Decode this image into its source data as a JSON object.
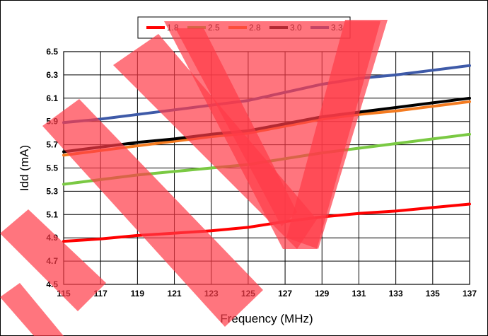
{
  "chart_data": {
    "type": "line",
    "title": "",
    "xlabel": "Frequency (MHz)",
    "ylabel": "Idd (mA)",
    "x": [
      115,
      117,
      119,
      121,
      123,
      125,
      127,
      129,
      131,
      133,
      135,
      137
    ],
    "xlim": [
      115,
      137
    ],
    "ylim": [
      4.5,
      6.5
    ],
    "xticks": [
      "115",
      "117",
      "119",
      "121",
      "123",
      "125",
      "127",
      "129",
      "131",
      "133",
      "135",
      "137"
    ],
    "yticks": [
      "4.5",
      "4.7",
      "4.9",
      "5.1",
      "5.3",
      "5.5",
      "5.7",
      "5.9",
      "6.1",
      "6.3",
      "6.5"
    ],
    "grid": true,
    "legend_position": "top-center",
    "series": [
      {
        "name": "1.8",
        "color": "#ff0000",
        "values": [
          4.87,
          4.89,
          4.92,
          4.94,
          4.96,
          4.99,
          5.04,
          5.08,
          5.11,
          5.13,
          5.16,
          5.19
        ]
      },
      {
        "name": "2.5",
        "color": "#7ac943",
        "values": [
          5.36,
          5.4,
          5.44,
          5.47,
          5.5,
          5.53,
          5.58,
          5.63,
          5.67,
          5.71,
          5.75,
          5.79
        ]
      },
      {
        "name": "2.8",
        "color": "#f47b20",
        "values": [
          5.61,
          5.65,
          5.69,
          5.73,
          5.77,
          5.8,
          5.86,
          5.92,
          5.96,
          5.99,
          6.03,
          6.07
        ]
      },
      {
        "name": "3.0",
        "color": "#000000",
        "values": [
          5.64,
          5.68,
          5.72,
          5.75,
          5.79,
          5.82,
          5.88,
          5.94,
          5.98,
          6.02,
          6.06,
          6.1
        ]
      },
      {
        "name": "3.3",
        "color": "#3e5aa8",
        "values": [
          5.89,
          5.92,
          5.96,
          6.0,
          6.04,
          6.08,
          6.15,
          6.22,
          6.27,
          6.3,
          6.34,
          6.38
        ]
      }
    ]
  },
  "overlay": {
    "color": "#ff3b47",
    "opacity": 0.7
  }
}
